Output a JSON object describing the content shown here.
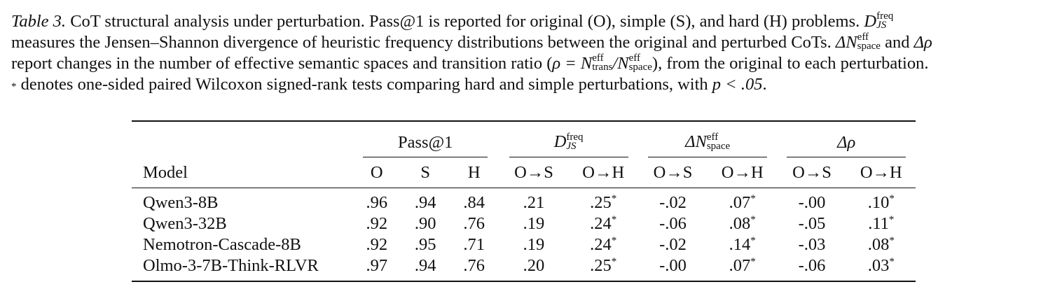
{
  "caption": {
    "label": "Table 3.",
    "line1_text": " CoT structural analysis under perturbation. Pass@1 is reported for original (O), simple (S), and hard (H) problems. ",
    "line1_sym": "D",
    "line1_sym_sup": "freq",
    "line1_sym_sub": "JS",
    "line2_text": "measures the Jensen–Shannon divergence of heuristic frequency distributions between the original and perturbed CoTs. ",
    "line2_delta1": "ΔN",
    "line2_delta1_sup": "eff",
    "line2_delta1_sub": "space",
    "line2_mid": " and ",
    "line2_delta2": "Δρ",
    "line3_text": "report changes in the number of effective semantic spaces and transition ratio (",
    "line3_rho": "ρ = N",
    "line3_n1_sup": "eff",
    "line3_n1_sub": "trans",
    "line3_slash": "/N",
    "line3_n2_sup": "eff",
    "line3_n2_sub": "space",
    "line3_end": "), from the original to each perturbation.",
    "line4_star": "*",
    "line4_text": " denotes one-sided paired Wilcoxon signed-rank tests comparing hard and simple perturbations, with ",
    "line4_p": "p < .05",
    "line4_end": "."
  },
  "table": {
    "group_pass": "Pass@1",
    "group_djs": "D",
    "group_djs_sup": "freq",
    "group_djs_sub": "JS",
    "group_dn": "ΔN",
    "group_dn_sup": "eff",
    "group_dn_sub": "space",
    "group_drho": "Δρ",
    "col_model": "Model",
    "cols": [
      "O",
      "S",
      "H",
      "O→S",
      "O→H",
      "O→S",
      "O→H",
      "O→S",
      "O→H"
    ],
    "rows": [
      {
        "model": "Qwen3-8B",
        "vals": [
          ".96",
          ".94",
          ".84",
          ".21",
          ".25",
          "-.02",
          ".07",
          "-.00",
          ".10"
        ]
      },
      {
        "model": "Qwen3-32B",
        "vals": [
          ".92",
          ".90",
          ".76",
          ".19",
          ".24",
          "-.06",
          ".08",
          "-.05",
          ".11"
        ]
      },
      {
        "model": "Nemotron-Cascade-8B",
        "vals": [
          ".92",
          ".95",
          ".71",
          ".19",
          ".24",
          "-.02",
          ".14",
          "-.03",
          ".08"
        ]
      },
      {
        "model": "Olmo-3-7B-Think-RLVR",
        "vals": [
          ".97",
          ".94",
          ".76",
          ".20",
          ".25",
          "-.00",
          ".07",
          "-.06",
          ".03"
        ]
      }
    ],
    "star": "*"
  }
}
